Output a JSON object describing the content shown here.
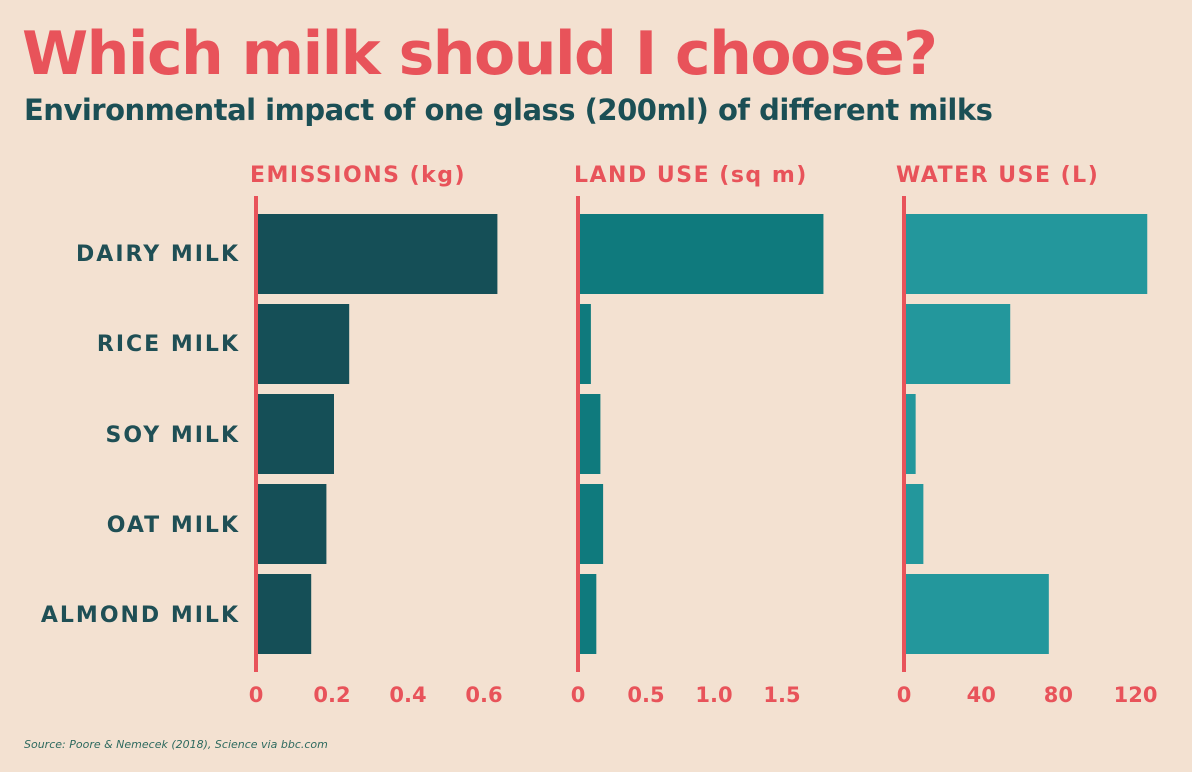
{
  "chart_data": {
    "type": "bar",
    "orientation": "horizontal",
    "title": "Which milk should I choose?",
    "subtitle": "Environmental impact of one glass (200ml) of different milks",
    "categories": [
      "DAIRY MILK",
      "RICE MILK",
      "SOY MILK",
      "OAT MILK",
      "ALMOND MILK"
    ],
    "panels": [
      {
        "name": "EMISSIONS (kg)",
        "values": [
          0.63,
          0.24,
          0.2,
          0.18,
          0.14
        ],
        "ticks": [
          0,
          0.2,
          0.4,
          0.6
        ],
        "tick_labels": [
          "0",
          "0.2",
          "0.4",
          "0.6"
        ],
        "xlim": [
          0,
          0.65
        ],
        "color": "#154f57"
      },
      {
        "name": "LAND USE (sq m)",
        "values": [
          1.79,
          0.08,
          0.15,
          0.17,
          0.12
        ],
        "ticks": [
          0,
          0.5,
          1.0,
          1.5
        ],
        "tick_labels": [
          "0",
          "0.5",
          "1.0",
          "1.5"
        ],
        "xlim": [
          0,
          1.85
        ],
        "color": "#0f7a7d"
      },
      {
        "name": "WATER USE (L)",
        "values": [
          125,
          54,
          5,
          9,
          74
        ],
        "ticks": [
          0,
          40,
          80,
          120
        ],
        "tick_labels": [
          "0",
          "40",
          "80",
          "120"
        ],
        "xlim": [
          0,
          130
        ],
        "color": "#23979c"
      }
    ],
    "axis_color": "#e8535a",
    "grid": false,
    "source": "Source: Poore & Nemecek (2018), Science via bbc.com"
  }
}
